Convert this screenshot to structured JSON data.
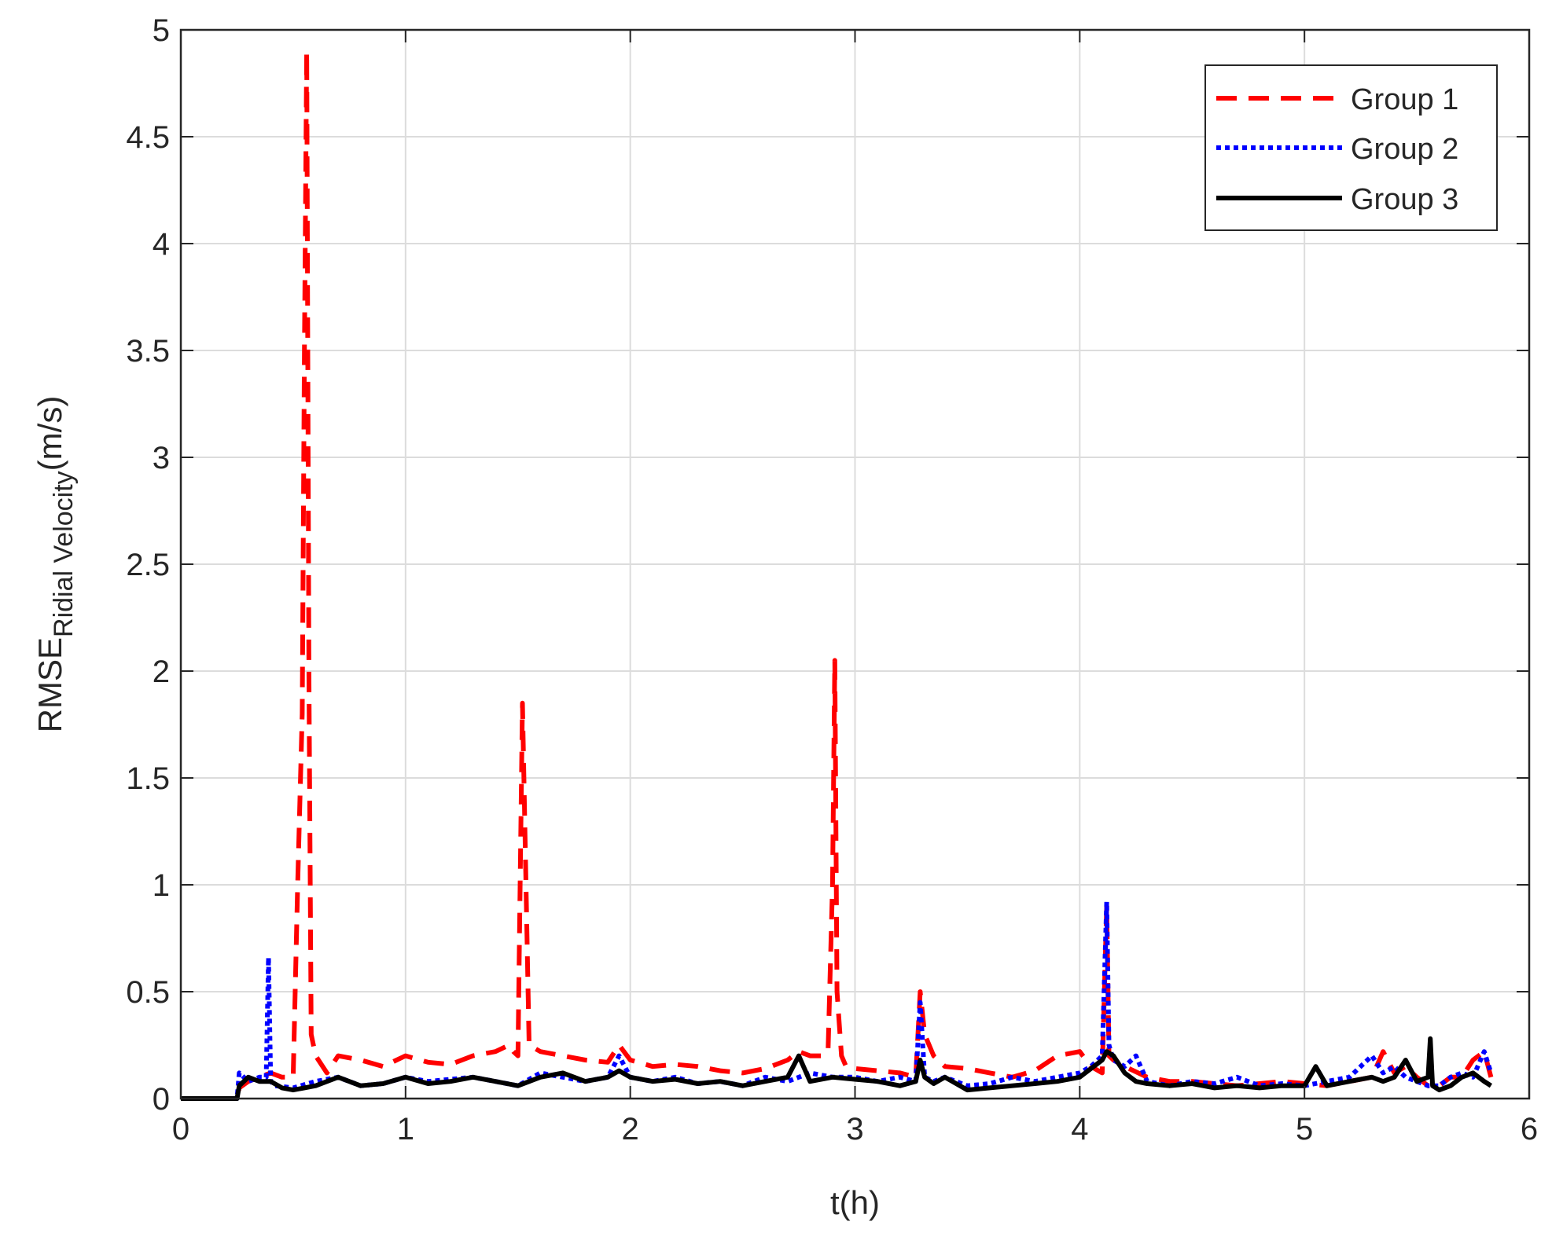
{
  "chart_data": {
    "type": "line",
    "xlabel": "t(h)",
    "ylabel_main": "RMSE",
    "ylabel_subscript": "Ridial Velocity",
    "ylabel_unit": "(m/s)",
    "xlim": [
      0,
      6
    ],
    "ylim": [
      0,
      5
    ],
    "xticks": [
      0,
      1,
      2,
      3,
      4,
      5,
      6
    ],
    "xtick_labels": [
      "0",
      "1",
      "2",
      "3",
      "4",
      "5",
      "6"
    ],
    "yticks": [
      0,
      0.5,
      1,
      1.5,
      2,
      2.5,
      3,
      3.5,
      4,
      4.5,
      5
    ],
    "ytick_labels": [
      "0",
      "0.5",
      "1",
      "1.5",
      "2",
      "2.5",
      "3",
      "3.5",
      "4",
      "4.5",
      "5"
    ],
    "grid": true,
    "legend_position": "top-right",
    "series": [
      {
        "name": "Group 1",
        "color": "#ff0000",
        "style": "dashed",
        "x": [
          0,
          0.25,
          0.26,
          0.3,
          0.35,
          0.4,
          0.45,
          0.5,
          0.52,
          0.54,
          0.55,
          0.56,
          0.57,
          0.58,
          0.6,
          0.65,
          0.7,
          0.8,
          0.9,
          1.0,
          1.1,
          1.2,
          1.3,
          1.4,
          1.46,
          1.48,
          1.5,
          1.52,
          1.55,
          1.6,
          1.7,
          1.8,
          1.9,
          1.95,
          2.0,
          2.1,
          2.2,
          2.3,
          2.4,
          2.5,
          2.6,
          2.7,
          2.75,
          2.8,
          2.85,
          2.88,
          2.9,
          2.91,
          2.92,
          2.94,
          2.96,
          3.0,
          3.1,
          3.2,
          3.27,
          3.29,
          3.31,
          3.35,
          3.4,
          3.5,
          3.6,
          3.7,
          3.8,
          3.9,
          4.0,
          4.05,
          4.1,
          4.12,
          4.13,
          4.15,
          4.2,
          4.3,
          4.4,
          4.5,
          4.6,
          4.7,
          4.8,
          4.9,
          5.0,
          5.1,
          5.2,
          5.3,
          5.35,
          5.4,
          5.45,
          5.5,
          5.55,
          5.6,
          5.65,
          5.7,
          5.75,
          5.8,
          5.83
        ],
        "y": [
          0,
          0,
          0.05,
          0.08,
          0.1,
          0.12,
          0.1,
          0.1,
          1.0,
          1.8,
          3.5,
          4.9,
          2.0,
          0.3,
          0.2,
          0.12,
          0.2,
          0.18,
          0.15,
          0.2,
          0.17,
          0.16,
          0.2,
          0.22,
          0.25,
          0.22,
          0.2,
          1.85,
          0.25,
          0.22,
          0.2,
          0.18,
          0.17,
          0.25,
          0.18,
          0.15,
          0.16,
          0.15,
          0.13,
          0.12,
          0.14,
          0.18,
          0.22,
          0.2,
          0.2,
          0.22,
          1.0,
          2.05,
          0.5,
          0.2,
          0.15,
          0.14,
          0.13,
          0.12,
          0.1,
          0.5,
          0.3,
          0.2,
          0.15,
          0.14,
          0.12,
          0.1,
          0.13,
          0.2,
          0.22,
          0.15,
          0.12,
          0.9,
          0.2,
          0.18,
          0.15,
          0.1,
          0.08,
          0.08,
          0.07,
          0.06,
          0.07,
          0.08,
          0.07,
          0.06,
          0.08,
          0.1,
          0.22,
          0.12,
          0.15,
          0.1,
          0.06,
          0.06,
          0.1,
          0.1,
          0.18,
          0.22,
          0.1
        ]
      },
      {
        "name": "Group 2",
        "color": "#0000ff",
        "style": "dotted",
        "x": [
          0,
          0.25,
          0.26,
          0.3,
          0.35,
          0.38,
          0.39,
          0.4,
          0.42,
          0.5,
          0.6,
          0.7,
          0.8,
          0.9,
          1.0,
          1.1,
          1.2,
          1.3,
          1.4,
          1.5,
          1.6,
          1.7,
          1.8,
          1.9,
          1.95,
          2.0,
          2.1,
          2.2,
          2.3,
          2.4,
          2.5,
          2.6,
          2.7,
          2.8,
          2.9,
          3.0,
          3.1,
          3.2,
          3.27,
          3.29,
          3.31,
          3.35,
          3.4,
          3.5,
          3.6,
          3.7,
          3.8,
          3.9,
          4.0,
          4.05,
          4.1,
          4.12,
          4.13,
          4.15,
          4.2,
          4.25,
          4.3,
          4.4,
          4.5,
          4.6,
          4.7,
          4.8,
          4.9,
          5.0,
          5.1,
          5.2,
          5.3,
          5.35,
          5.4,
          5.45,
          5.5,
          5.55,
          5.6,
          5.65,
          5.7,
          5.75,
          5.8,
          5.83
        ],
        "y": [
          0,
          0,
          0.12,
          0.08,
          0.1,
          0.1,
          0.66,
          0.08,
          0.06,
          0.05,
          0.08,
          0.1,
          0.06,
          0.07,
          0.1,
          0.08,
          0.09,
          0.1,
          0.08,
          0.06,
          0.12,
          0.1,
          0.08,
          0.1,
          0.2,
          0.1,
          0.08,
          0.1,
          0.07,
          0.08,
          0.06,
          0.1,
          0.08,
          0.12,
          0.1,
          0.1,
          0.08,
          0.1,
          0.08,
          0.45,
          0.1,
          0.08,
          0.1,
          0.06,
          0.07,
          0.1,
          0.08,
          0.1,
          0.12,
          0.15,
          0.2,
          0.92,
          0.25,
          0.18,
          0.15,
          0.2,
          0.08,
          0.06,
          0.08,
          0.07,
          0.1,
          0.06,
          0.07,
          0.06,
          0.08,
          0.1,
          0.2,
          0.12,
          0.15,
          0.1,
          0.08,
          0.06,
          0.06,
          0.1,
          0.12,
          0.1,
          0.22,
          0.12
        ]
      },
      {
        "name": "Group 3",
        "color": "#000000",
        "style": "solid",
        "x": [
          0,
          0.25,
          0.26,
          0.3,
          0.35,
          0.4,
          0.45,
          0.5,
          0.55,
          0.6,
          0.7,
          0.8,
          0.9,
          1.0,
          1.1,
          1.2,
          1.3,
          1.4,
          1.5,
          1.6,
          1.7,
          1.8,
          1.9,
          1.95,
          2.0,
          2.1,
          2.2,
          2.3,
          2.4,
          2.5,
          2.6,
          2.7,
          2.75,
          2.8,
          2.9,
          3.0,
          3.1,
          3.2,
          3.27,
          3.29,
          3.31,
          3.35,
          3.4,
          3.5,
          3.6,
          3.7,
          3.8,
          3.9,
          4.0,
          4.05,
          4.1,
          4.12,
          4.15,
          4.2,
          4.25,
          4.3,
          4.4,
          4.5,
          4.6,
          4.7,
          4.8,
          4.9,
          5.0,
          5.05,
          5.1,
          5.2,
          5.3,
          5.35,
          5.4,
          5.45,
          5.5,
          5.55,
          5.56,
          5.57,
          5.6,
          5.65,
          5.7,
          5.75,
          5.8,
          5.83
        ],
        "y": [
          0,
          0,
          0.06,
          0.1,
          0.08,
          0.08,
          0.05,
          0.04,
          0.05,
          0.06,
          0.1,
          0.06,
          0.07,
          0.1,
          0.07,
          0.08,
          0.1,
          0.08,
          0.06,
          0.1,
          0.12,
          0.08,
          0.1,
          0.13,
          0.1,
          0.08,
          0.09,
          0.07,
          0.08,
          0.06,
          0.08,
          0.1,
          0.2,
          0.08,
          0.1,
          0.09,
          0.08,
          0.06,
          0.08,
          0.18,
          0.1,
          0.07,
          0.1,
          0.04,
          0.05,
          0.06,
          0.07,
          0.08,
          0.1,
          0.14,
          0.18,
          0.22,
          0.2,
          0.12,
          0.08,
          0.07,
          0.06,
          0.07,
          0.05,
          0.06,
          0.05,
          0.06,
          0.06,
          0.15,
          0.06,
          0.08,
          0.1,
          0.08,
          0.1,
          0.18,
          0.08,
          0.1,
          0.28,
          0.06,
          0.04,
          0.06,
          0.1,
          0.12,
          0.08,
          0.06
        ]
      }
    ]
  }
}
